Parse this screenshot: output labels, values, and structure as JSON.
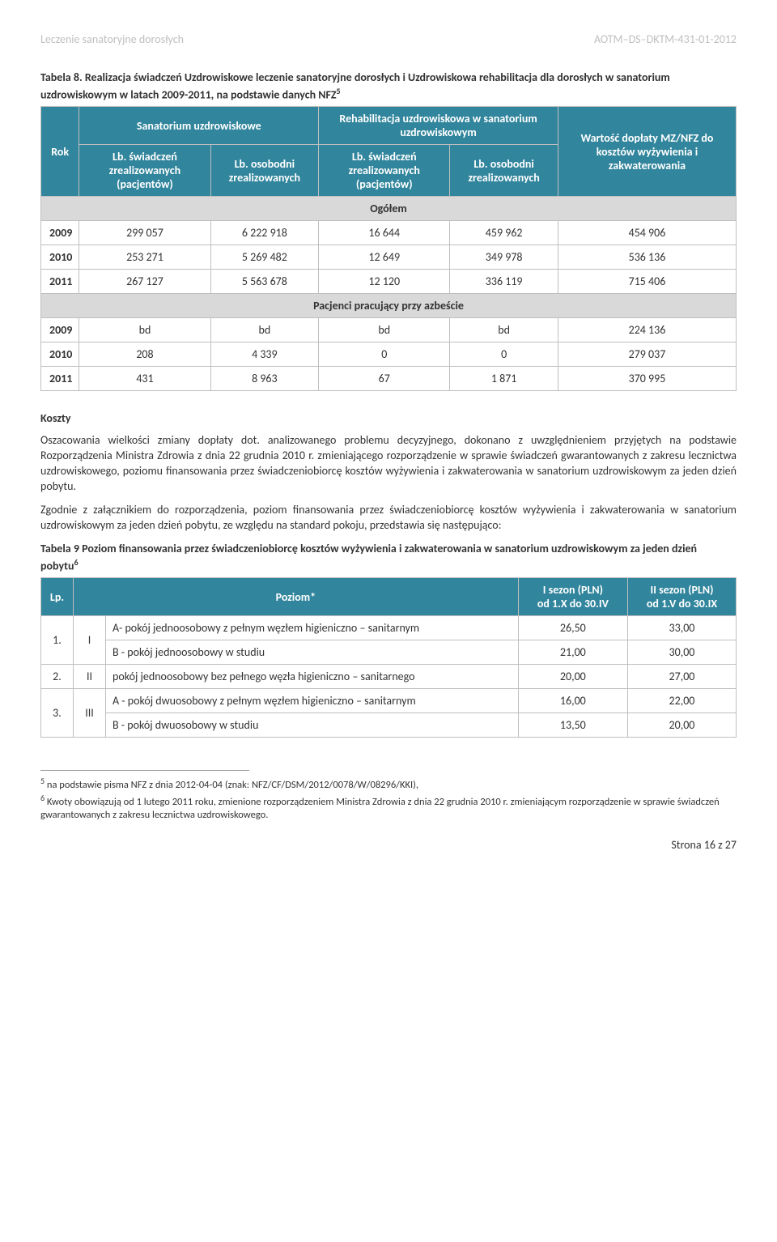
{
  "header": {
    "left": "Leczenie sanatoryjne dorosłych",
    "right": "AOTM–DS–DKTM-431-01-2012"
  },
  "table1": {
    "caption": "Tabela 8. Realizacja świadczeń Uzdrowiskowe leczenie sanatoryjne dorosłych i Uzdrowiskowa rehabilitacja dla dorosłych w sanatorium uzdrowiskowym w latach 2009-2011, na podstawie danych NFZ",
    "caption_sup": "5",
    "headers": {
      "rok": "Rok",
      "group1": "Sanatorium uzdrowiskowe",
      "g1c1": "Lb. świadczeń zrealizowanych (pacjentów)",
      "g1c2": "Lb. osobodni zrealizowanych",
      "group2": "Rehabilitacja uzdrowiskowa w sanatorium uzdrowiskowym",
      "g2c1": "Lb. świadczeń zrealizowanych (pacjentów)",
      "g2c2": "Lb. osobodni zrealizowanych",
      "last": "Wartość dopłaty MZ/NFZ do kosztów wyżywienia i zakwaterowania"
    },
    "section1_label": "Ogółem",
    "section1_rows": [
      {
        "year": "2009",
        "c1": "299 057",
        "c2": "6 222 918",
        "c3": "16 644",
        "c4": "459 962",
        "c5": "454 906"
      },
      {
        "year": "2010",
        "c1": "253 271",
        "c2": "5 269 482",
        "c3": "12 649",
        "c4": "349 978",
        "c5": "536 136"
      },
      {
        "year": "2011",
        "c1": "267 127",
        "c2": "5 563 678",
        "c3": "12 120",
        "c4": "336 119",
        "c5": "715 406"
      }
    ],
    "section2_label": "Pacjenci pracujący przy azbeście",
    "section2_rows": [
      {
        "year": "2009",
        "c1": "bd",
        "c2": "bd",
        "c3": "bd",
        "c4": "bd",
        "c5": "224 136"
      },
      {
        "year": "2010",
        "c1": "208",
        "c2": "4 339",
        "c3": "0",
        "c4": "0",
        "c5": "279 037"
      },
      {
        "year": "2011",
        "c1": "431",
        "c2": "8 963",
        "c3": "67",
        "c4": "1 871",
        "c5": "370 995"
      }
    ]
  },
  "koszty": {
    "heading": "Koszty",
    "p1": "Oszacowania wielkości zmiany dopłaty dot. analizowanego problemu decyzyjnego, dokonano z uwzględnieniem przyjętych na podstawie Rozporządzenia Ministra Zdrowia z dnia 22 grudnia 2010 r. zmieniającego rozporządzenie w sprawie świadczeń gwarantowanych z zakresu lecznictwa uzdrowiskowego, poziomu finansowania przez świadczeniobiorcę kosztów wyżywienia i zakwaterowania w sanatorium uzdrowiskowym za jeden dzień pobytu.",
    "p2": "Zgodnie z załącznikiem do rozporządzenia, poziom finansowania przez świadczeniobiorcę kosztów wyżywienia i zakwaterowania w sanatorium uzdrowiskowym za jeden dzień pobytu, ze względu na standard pokoju, przedstawia się następująco:"
  },
  "table2": {
    "caption": "Tabela 9 Poziom finansowania przez świadczeniobiorcę kosztów wyżywienia i zakwaterowania w sanatorium uzdrowiskowym za jeden dzień pobytu",
    "caption_sup": "6",
    "headers": {
      "lp": "Lp.",
      "poziom": "Poziom*",
      "s1a": "I sezon (PLN)",
      "s1b": "od 1.X do 30.IV",
      "s2a": "II sezon (PLN)",
      "s2b": "od 1.V do 30.IX"
    },
    "rows": [
      {
        "lp": "1.",
        "roman": "I",
        "desc": "A- pokój jednoosobowy z pełnym węzłem higieniczno – sanitarnym",
        "v1": "26,50",
        "v2": "33,00"
      },
      {
        "lp": "",
        "roman": "",
        "desc": "B - pokój jednoosobowy w studiu",
        "v1": "21,00",
        "v2": "30,00"
      },
      {
        "lp": "2.",
        "roman": "II",
        "desc": "pokój jednoosobowy bez pełnego węzła higieniczno – sanitarnego",
        "v1": "20,00",
        "v2": "27,00"
      },
      {
        "lp": "3.",
        "roman": "III",
        "desc": "A - pokój dwuosobowy z pełnym węzłem higieniczno – sanitarnym",
        "v1": "16,00",
        "v2": "22,00"
      },
      {
        "lp": "",
        "roman": "",
        "desc": "B - pokój dwuosobowy w studiu",
        "v1": "13,50",
        "v2": "20,00"
      }
    ]
  },
  "footnotes": {
    "f5": "na podstawie pisma NFZ z dnia 2012-04-04 (znak: NFZ/CF/DSM/2012/0078/W/08296/KKI),",
    "f6": "Kwoty obowiązują od 1 lutego 2011 roku, zmienione rozporządzeniem Ministra Zdrowia z dnia 22 grudnia 2010 r. zmieniającym rozporządzenie w sprawie świadczeń gwarantowanych z zakresu lecznictwa uzdrowiskowego."
  },
  "footer": "Strona 16 z 27"
}
